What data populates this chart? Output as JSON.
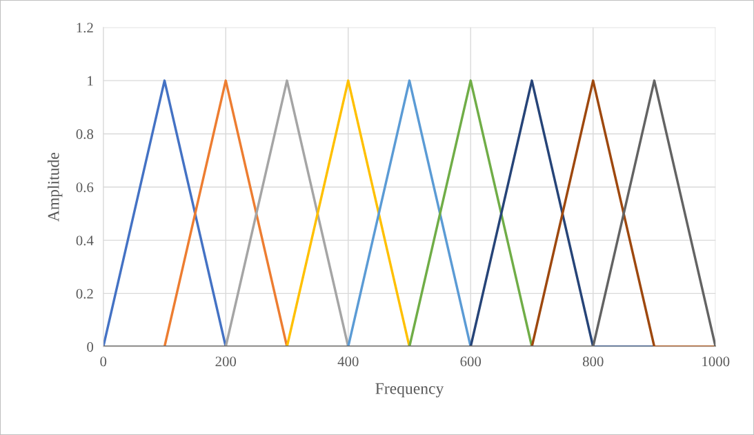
{
  "chart_data": {
    "type": "line",
    "xlabel": "Frequency",
    "ylabel": "Amplitude",
    "xlim": [
      0,
      1000
    ],
    "ylim": [
      0,
      1.2
    ],
    "xticks": [
      0,
      200,
      400,
      600,
      800,
      1000
    ],
    "yticks": [
      0,
      0.2,
      0.4,
      0.6,
      0.8,
      1,
      1.2
    ],
    "grid": true,
    "marker": "none",
    "line_style": "solid",
    "series": [
      {
        "color": "#4472c4",
        "x": [
          0,
          100,
          200,
          1000
        ],
        "values": [
          0,
          1,
          0,
          0
        ]
      },
      {
        "color": "#ed7d31",
        "x": [
          0,
          100,
          200,
          300,
          1000
        ],
        "values": [
          0,
          0,
          1,
          0,
          0
        ]
      },
      {
        "color": "#a5a5a5",
        "x": [
          0,
          200,
          300,
          400,
          1000
        ],
        "values": [
          0,
          0,
          1,
          0,
          0
        ]
      },
      {
        "color": "#ffc000",
        "x": [
          0,
          300,
          400,
          500,
          1000
        ],
        "values": [
          0,
          0,
          1,
          0,
          0
        ]
      },
      {
        "color": "#5b9bd5",
        "x": [
          0,
          400,
          500,
          600,
          1000
        ],
        "values": [
          0,
          0,
          1,
          0,
          0
        ]
      },
      {
        "color": "#70ad47",
        "x": [
          0,
          500,
          600,
          700,
          1000
        ],
        "values": [
          0,
          0,
          1,
          0,
          0
        ]
      },
      {
        "color": "#264478",
        "x": [
          0,
          600,
          700,
          800,
          1000
        ],
        "values": [
          0,
          0,
          1,
          0,
          0
        ]
      },
      {
        "color": "#9e480e",
        "x": [
          0,
          700,
          800,
          900,
          1000
        ],
        "values": [
          0,
          0,
          1,
          0,
          0
        ]
      },
      {
        "color": "#636363",
        "x": [
          0,
          800,
          900,
          1000
        ],
        "values": [
          0,
          0,
          1,
          0
        ]
      }
    ]
  }
}
